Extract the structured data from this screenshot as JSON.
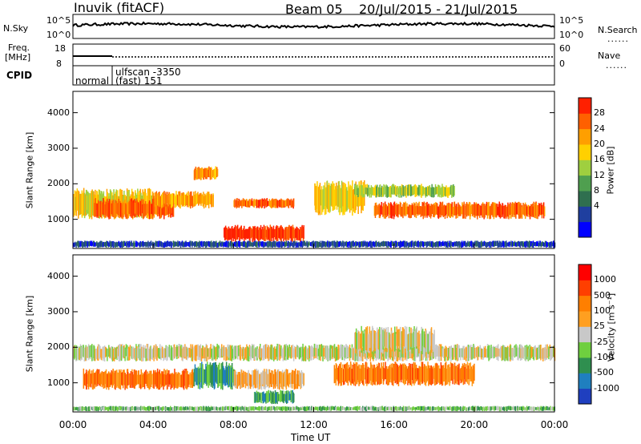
{
  "header": {
    "station": "Inuvik (fitACF)",
    "beam": "Beam 05",
    "date_range": "20/Jul/2015 - 21/Jul/2015"
  },
  "strips": {
    "nsky_label": "N.Sky",
    "nsearch_label": "N.Search",
    "nsky_ticks": [
      "10^5",
      "10^0"
    ],
    "freq_label_1": "Freq.",
    "freq_label_2": "[MHz]",
    "freq_ticks": [
      "18",
      "8"
    ],
    "nave_label": "Nave",
    "nave_ticks": [
      "60",
      "0"
    ],
    "cpid_label": "CPID",
    "cpid_segments": [
      "normal",
      "ulfscan -3350",
      "(fast) 151"
    ],
    "legend_dots": "......"
  },
  "chart_data": [
    {
      "type": "heatmap",
      "title": "",
      "ylabel": "Slant Range [km]",
      "xlabel": "",
      "y_ticks": [
        1000,
        2000,
        3000,
        4000
      ],
      "ylim": [
        180,
        4600
      ],
      "x_ticks": [
        "00:00",
        "04:00",
        "08:00",
        "12:00",
        "16:00",
        "20:00",
        "00:00"
      ],
      "xlim_hours": [
        0,
        24
      ],
      "colorbar": {
        "label": "Power [dB]",
        "ticks": [
          "28",
          "24",
          "20",
          "16",
          "12",
          "8",
          "4"
        ],
        "colors": [
          "#0000ff",
          "#1f3f9f",
          "#2f6f4f",
          "#4f9f4f",
          "#9fcf3f",
          "#ffd000",
          "#ff9f00",
          "#ff6000",
          "#ff2000"
        ]
      },
      "bands": [
        {
          "h0": 0.0,
          "h1": 4.0,
          "r0": 1000,
          "r1": 1900,
          "level": 5
        },
        {
          "h0": 1.0,
          "h1": 5.0,
          "r0": 1000,
          "r1": 1600,
          "level": 7
        },
        {
          "h0": 4.0,
          "h1": 7.0,
          "r0": 1300,
          "r1": 1800,
          "level": 6
        },
        {
          "h0": 6.0,
          "h1": 7.2,
          "r0": 2100,
          "r1": 2500,
          "level": 6
        },
        {
          "h0": 7.5,
          "h1": 11.5,
          "r0": 350,
          "r1": 850,
          "level": 8
        },
        {
          "h0": 8.0,
          "h1": 11.0,
          "r0": 1300,
          "r1": 1600,
          "level": 7
        },
        {
          "h0": 12.0,
          "h1": 14.5,
          "r0": 1100,
          "r1": 2100,
          "level": 5
        },
        {
          "h0": 14.0,
          "h1": 19.0,
          "r0": 1600,
          "r1": 2000,
          "level": 4
        },
        {
          "h0": 15.0,
          "h1": 23.5,
          "r0": 1000,
          "r1": 1500,
          "level": 7
        },
        {
          "h0": 0.0,
          "h1": 24.0,
          "r0": 200,
          "r1": 400,
          "level": 1
        }
      ]
    },
    {
      "type": "heatmap",
      "title": "",
      "ylabel": "Slant Range [km]",
      "xlabel": "Time UT",
      "y_ticks": [
        1000,
        2000,
        3000,
        4000
      ],
      "ylim": [
        180,
        4600
      ],
      "x_ticks": [
        "00:00",
        "04:00",
        "08:00",
        "12:00",
        "16:00",
        "20:00",
        "00:00"
      ],
      "xlim_hours": [
        0,
        24
      ],
      "colorbar": {
        "label": "Velocity [m s⁻¹]",
        "ticks": [
          "1000",
          "500",
          "100",
          "25",
          "-25",
          "-100",
          "-500",
          "-1000"
        ],
        "colors": [
          "#1f3fbf",
          "#1f7fbf",
          "#2f8f4f",
          "#6fcf3f",
          "#c8c8c8",
          "#ff9f20",
          "#ff7f00",
          "#ff3f00",
          "#ff0000"
        ]
      },
      "bands": [
        {
          "h0": 0.0,
          "h1": 24.0,
          "r0": 1600,
          "r1": 2100,
          "level": 4
        },
        {
          "h0": 0.5,
          "h1": 6.0,
          "r0": 800,
          "r1": 1400,
          "level": 6
        },
        {
          "h0": 6.0,
          "h1": 8.0,
          "r0": 800,
          "r1": 1600,
          "level": 2
        },
        {
          "h0": 8.0,
          "h1": 11.5,
          "r0": 800,
          "r1": 1400,
          "level": 5
        },
        {
          "h0": 9.0,
          "h1": 11.0,
          "r0": 400,
          "r1": 800,
          "level": 2
        },
        {
          "h0": 13.0,
          "h1": 20.0,
          "r0": 900,
          "r1": 1600,
          "level": 6
        },
        {
          "h0": 14.0,
          "h1": 18.0,
          "r0": 1800,
          "r1": 2600,
          "level": 4
        },
        {
          "h0": 0.0,
          "h1": 24.0,
          "r0": 200,
          "r1": 350,
          "level": 3
        }
      ]
    }
  ]
}
